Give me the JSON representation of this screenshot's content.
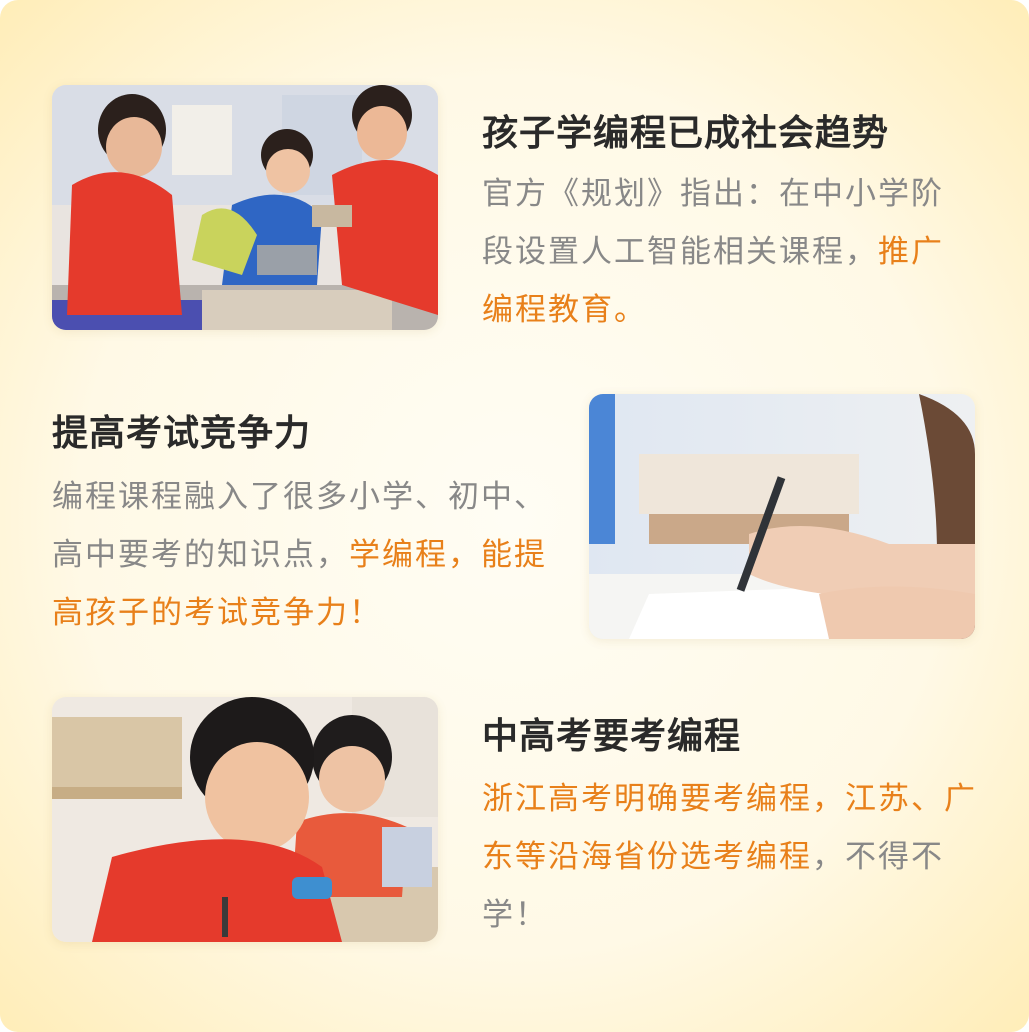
{
  "sections": [
    {
      "title": "孩子学编程已成社会趋势",
      "body_plain": "官方《规划》指出：在中小学阶段设置人工智能相关课程，",
      "body_highlight": "推广编程教育。",
      "image_label": "children-building-robot-photo"
    },
    {
      "title": "提高考试竞争力",
      "body_plain": "编程课程融入了很多小学、初中、高中要考的知识点，",
      "body_highlight": "学编程，能提高孩子的考试竞争力！",
      "image_label": "hand-writing-exam-photo"
    },
    {
      "title": "中高考要考编程",
      "body_highlight": "浙江高考明确要考编程，江苏、广东等沿海省份选考编程",
      "body_plain": "，不得不学！",
      "image_label": "child-writing-in-class-photo"
    }
  ],
  "colors": {
    "highlight": "#e8801a",
    "title": "#2a2a2a",
    "body": "#888888",
    "shirt_red": "#e53a2c"
  }
}
